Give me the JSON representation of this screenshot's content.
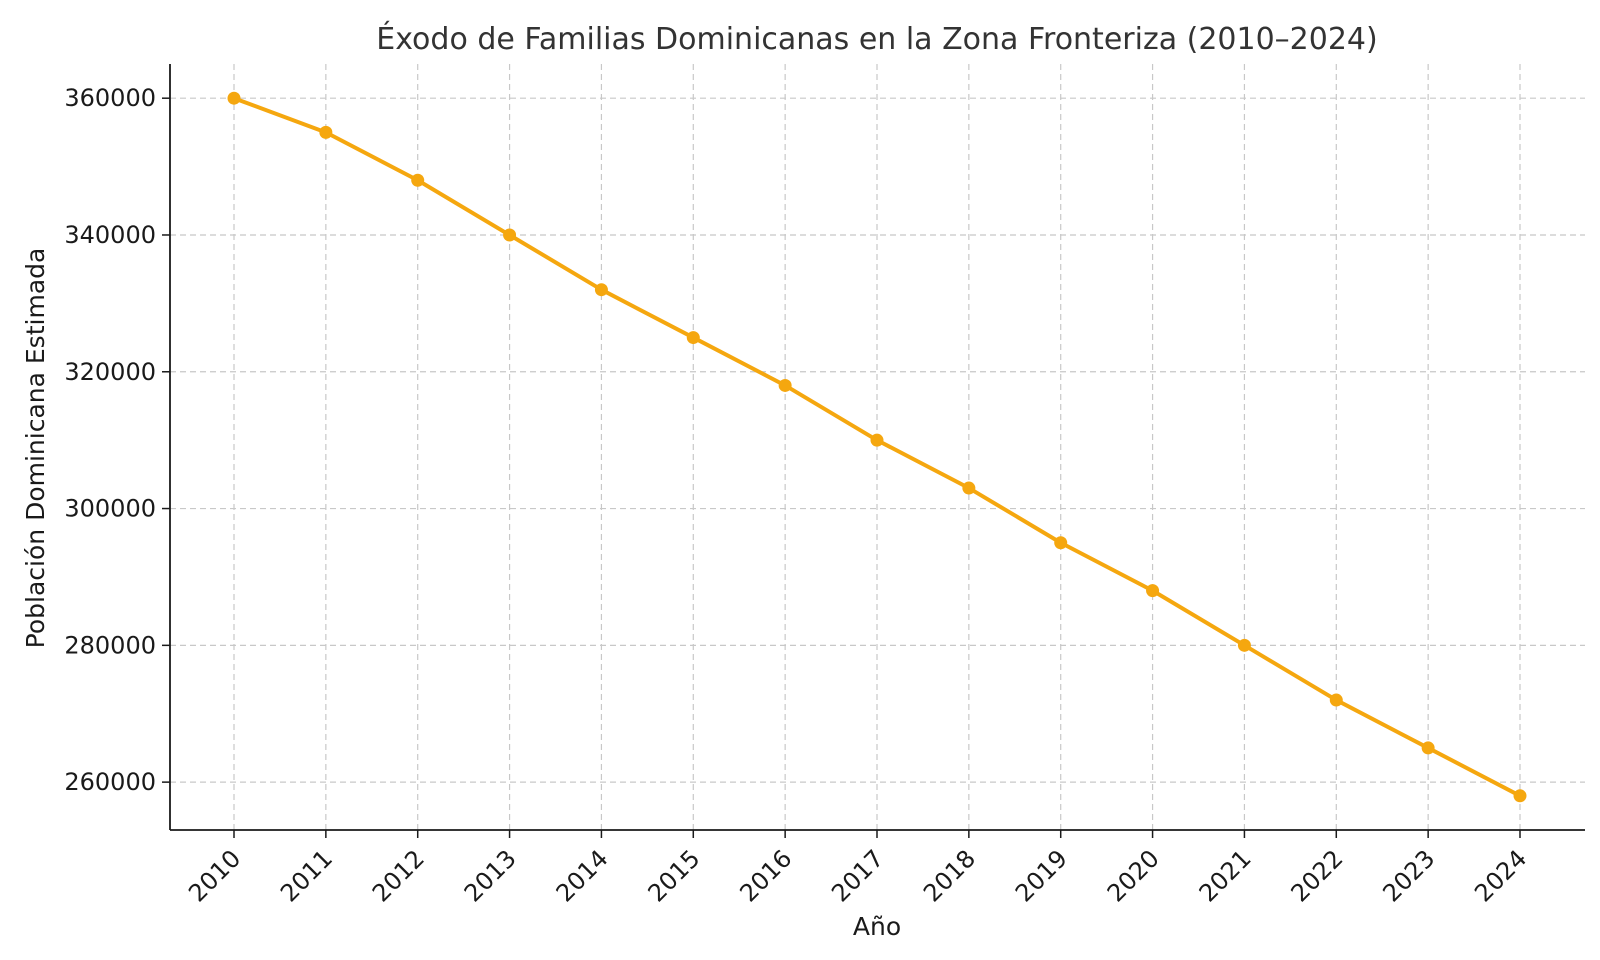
{
  "chart_data": {
    "type": "line",
    "title": "Éxodo de Familias Dominicanas en la Zona Fronteriza (2010–2024)",
    "xlabel": "Año",
    "ylabel": "Población Dominicana Estimada",
    "categories": [
      "2010",
      "2011",
      "2012",
      "2013",
      "2014",
      "2015",
      "2016",
      "2017",
      "2018",
      "2019",
      "2020",
      "2021",
      "2022",
      "2023",
      "2024"
    ],
    "series": [
      {
        "values": [
          360000,
          355000,
          348000,
          340000,
          332000,
          325000,
          318000,
          310000,
          303000,
          295000,
          288000,
          280000,
          272000,
          265000,
          258000
        ],
        "color": "#F5A70F",
        "marker": "circle"
      }
    ],
    "yticks": [
      "260000",
      "280000",
      "300000",
      "320000",
      "340000",
      "360000"
    ],
    "ylim": [
      253000,
      365000
    ],
    "grid": true,
    "spines": [
      "left",
      "bottom"
    ],
    "xtick_rotation": -45
  }
}
